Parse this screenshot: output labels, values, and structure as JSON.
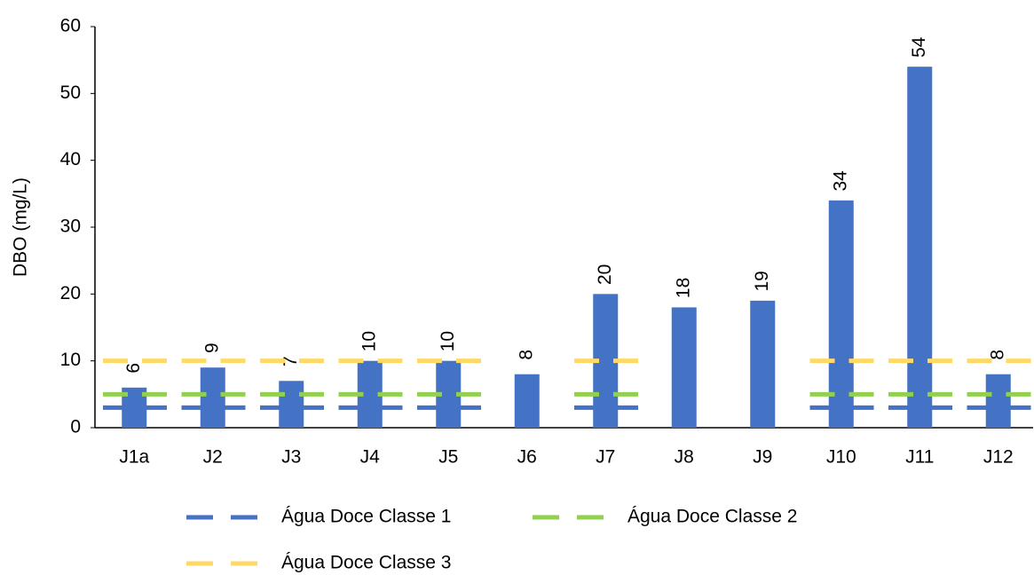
{
  "chart_data": {
    "type": "bar",
    "y_label": "DBO (mg/L)",
    "categories": [
      "J1a",
      "J2",
      "J3",
      "J4",
      "J5",
      "J6",
      "J7",
      "J8",
      "J9",
      "J10",
      "J11",
      "J12"
    ],
    "values": [
      6,
      9,
      7,
      10,
      10,
      8,
      20,
      18,
      19,
      34,
      54,
      8
    ],
    "color": "#4472c4",
    "series": [
      {
        "name": "Água Doce Classe 1",
        "color": "#4472c4",
        "values": [
          3,
          3,
          3,
          3,
          3,
          null,
          3,
          null,
          null,
          3,
          3,
          3
        ]
      },
      {
        "name": "Água Doce Classe 2",
        "color": "#92d050",
        "values": [
          5,
          5,
          5,
          5,
          5,
          null,
          5,
          null,
          null,
          5,
          5,
          5
        ]
      },
      {
        "name": "Água Doce Classe 3",
        "color": "#ffd966",
        "values": [
          10,
          10,
          10,
          10,
          10,
          null,
          10,
          null,
          null,
          10,
          10,
          10
        ]
      }
    ],
    "ylim": [
      0,
      60
    ],
    "yticks": [
      0,
      10,
      20,
      30,
      40,
      50,
      60
    ]
  }
}
